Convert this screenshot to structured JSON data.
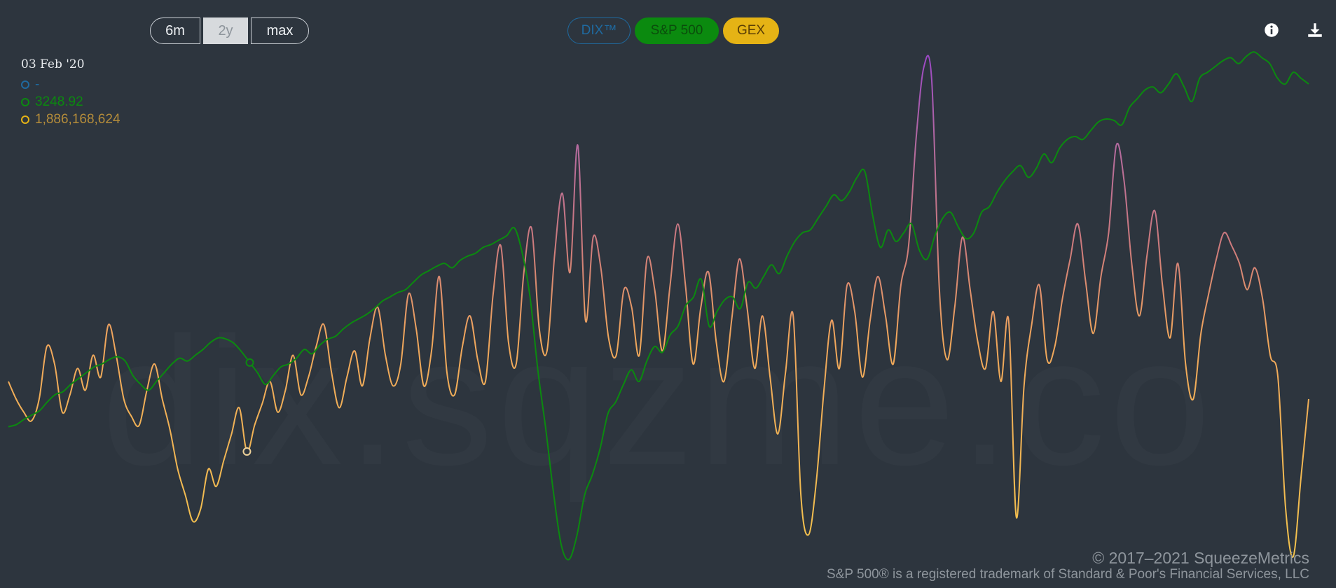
{
  "range_buttons": [
    {
      "label": "6m",
      "active": false
    },
    {
      "label": "2y",
      "active": true
    },
    {
      "label": "max",
      "active": false
    }
  ],
  "series_buttons": [
    {
      "label": "DIX™",
      "color": "#1f6aa0",
      "enabled": false
    },
    {
      "label": "S&P 500",
      "color": "#0b8a0f",
      "enabled": true
    },
    {
      "label": "GEX",
      "color": "#e5b315",
      "enabled": true
    }
  ],
  "toolbar": {
    "info_icon": "info-icon",
    "download_icon": "download-icon"
  },
  "tooltip": {
    "date": "03 Feb '20",
    "dix": "-",
    "spx": "3248.92",
    "gex": "1,886,168,624",
    "colors": {
      "dix": "#1f6aa0",
      "spx": "#0b8a0f",
      "gex": "#b48c3a"
    }
  },
  "watermark": "dix.sqzme.co",
  "footer": {
    "copyright": "© 2017–2021 SqueezeMetrics",
    "trademark": "S&P 500® is a registered trademark of Standard & Poor's Financial Services, LLC"
  },
  "chart_data": {
    "type": "line",
    "x_range": [
      "Feb '19",
      "Feb '21"
    ],
    "grid": false,
    "series": [
      {
        "name": "S&P 500",
        "color": "#0b8a0f",
        "ylim": [
          2200,
          4000
        ],
        "values": [
          2705,
          2712,
          2730,
          2745,
          2760,
          2790,
          2815,
          2825,
          2850,
          2870,
          2890,
          2910,
          2920,
          2936,
          2945,
          2930,
          2880,
          2850,
          2830,
          2860,
          2890,
          2920,
          2940,
          2930,
          2950,
          2970,
          2995,
          3010,
          3005,
          2990,
          2960,
          2925,
          2890,
          2850,
          2880,
          2910,
          2920,
          2940,
          2970,
          2955,
          2985,
          3005,
          3015,
          3040,
          3060,
          3075,
          3090,
          3110,
          3135,
          3150,
          3165,
          3175,
          3200,
          3225,
          3240,
          3255,
          3265,
          3250,
          3275,
          3290,
          3300,
          3320,
          3330,
          3345,
          3360,
          3386,
          3300,
          3150,
          2900,
          2700,
          2480,
          2300,
          2250,
          2330,
          2470,
          2540,
          2630,
          2750,
          2790,
          2850,
          2900,
          2860,
          2930,
          2980,
          2960,
          3020,
          3050,
          3120,
          3150,
          3210,
          3050,
          3100,
          3140,
          3150,
          3110,
          3200,
          3180,
          3220,
          3260,
          3230,
          3290,
          3340,
          3370,
          3380,
          3420,
          3460,
          3500,
          3480,
          3510,
          3560,
          3580,
          3430,
          3320,
          3380,
          3340,
          3370,
          3400,
          3310,
          3280,
          3360,
          3420,
          3440,
          3390,
          3350,
          3370,
          3440,
          3460,
          3510,
          3550,
          3580,
          3600,
          3560,
          3590,
          3640,
          3610,
          3660,
          3690,
          3700,
          3690,
          3720,
          3750,
          3760,
          3755,
          3740,
          3800,
          3830,
          3860,
          3870,
          3850,
          3880,
          3915,
          3870,
          3820,
          3900,
          3920,
          3940,
          3960,
          3970,
          3950,
          3975,
          3990,
          3970,
          3950,
          3900,
          3880,
          3920,
          3900,
          3880
        ]
      },
      {
        "name": "GEX",
        "color": "#e5b315",
        "ylim": [
          -3000000000,
          9000000000
        ],
        "values": [
          1400000000,
          1000000000,
          700000000,
          500000000,
          1000000000,
          2200000000,
          1800000000,
          700000000,
          1100000000,
          1700000000,
          1200000000,
          2000000000,
          1500000000,
          2700000000,
          2000000000,
          1000000000,
          600000000,
          400000000,
          1200000000,
          1800000000,
          1000000000,
          300000000,
          -600000000,
          -1200000000,
          -1800000000,
          -1500000000,
          -600000000,
          -1000000000,
          -400000000,
          200000000,
          800000000,
          -200000000,
          400000000,
          900000000,
          1400000000,
          700000000,
          1200000000,
          2000000000,
          1100000000,
          1500000000,
          2200000000,
          2700000000,
          1600000000,
          800000000,
          1500000000,
          2100000000,
          1300000000,
          2400000000,
          3100000000,
          2000000000,
          1300000000,
          1800000000,
          3400000000,
          2600000000,
          1300000000,
          2100000000,
          3800000000,
          1600000000,
          1100000000,
          2200000000,
          2900000000,
          1900000000,
          1400000000,
          3400000000,
          4500000000,
          2300000000,
          1800000000,
          3900000000,
          4900000000,
          2600000000,
          2100000000,
          4300000000,
          5700000000,
          3900000000,
          6800000000,
          2800000000,
          4700000000,
          4000000000,
          2400000000,
          2000000000,
          3500000000,
          3100000000,
          2000000000,
          4200000000,
          3500000000,
          2100000000,
          3600000000,
          5000000000,
          3600000000,
          1800000000,
          3100000000,
          3900000000,
          2300000000,
          1400000000,
          2800000000,
          4200000000,
          3100000000,
          1700000000,
          2900000000,
          1500000000,
          200000000,
          1600000000,
          2900000000,
          -1200000000,
          -2100000000,
          -900000000,
          1200000000,
          2800000000,
          1700000000,
          3600000000,
          3000000000,
          1500000000,
          2800000000,
          3800000000,
          2900000000,
          1800000000,
          3600000000,
          4500000000,
          7000000000,
          8600000000,
          8300000000,
          3500000000,
          1900000000,
          3100000000,
          4700000000,
          3500000000,
          2300000000,
          1700000000,
          3000000000,
          1400000000,
          2800000000,
          -1700000000,
          1300000000,
          2700000000,
          3600000000,
          1900000000,
          2200000000,
          3300000000,
          4200000000,
          5000000000,
          3700000000,
          2500000000,
          3800000000,
          4800000000,
          6800000000,
          6000000000,
          4100000000,
          2900000000,
          4300000000,
          5300000000,
          3600000000,
          2400000000,
          4100000000,
          1800000000,
          1000000000,
          2500000000,
          3400000000,
          4200000000,
          4800000000,
          4500000000,
          4100000000,
          3500000000,
          4000000000,
          3300000000,
          2000000000,
          1500000000,
          -1500000000,
          -2600000000,
          -800000000,
          1000000000
        ]
      }
    ]
  }
}
